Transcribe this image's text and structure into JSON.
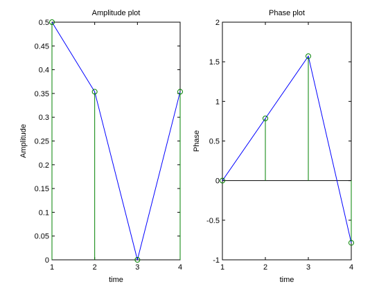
{
  "chart_data": [
    {
      "type": "line",
      "title": "Amplitude plot",
      "xlabel": "time",
      "ylabel": "Amplitude",
      "xlim": [
        1,
        4
      ],
      "ylim": [
        0,
        0.5
      ],
      "x_ticks": [
        1,
        2,
        3,
        4
      ],
      "y_ticks": [
        0,
        0.05,
        0.1,
        0.15,
        0.2,
        0.25,
        0.3,
        0.35,
        0.4,
        0.45,
        0.5
      ],
      "x_tick_labels": [
        "1",
        "2",
        "3",
        "4"
      ],
      "y_tick_labels": [
        "0",
        "0.05",
        "0.1",
        "0.15",
        "0.2",
        "0.25",
        "0.3",
        "0.35",
        "0.4",
        "0.45",
        "0.5"
      ],
      "x": [
        1,
        2,
        3,
        4
      ],
      "values": [
        0.5,
        0.3536,
        0,
        0.3536
      ],
      "stems": true,
      "markers": "circle",
      "line_color": "#0000ff",
      "stem_color": "#008000",
      "grid": false,
      "zero_line": false
    },
    {
      "type": "line",
      "title": "Phase plot",
      "xlabel": "time",
      "ylabel": "Phase",
      "xlim": [
        1,
        4
      ],
      "ylim": [
        -1,
        2
      ],
      "x_ticks": [
        1,
        2,
        3,
        4
      ],
      "y_ticks": [
        -1,
        -0.5,
        0,
        0.5,
        1,
        1.5,
        2
      ],
      "x_tick_labels": [
        "1",
        "2",
        "3",
        "4"
      ],
      "y_tick_labels": [
        "-1",
        "-0.5",
        "0",
        "0.5",
        "1",
        "1.5",
        "2"
      ],
      "x": [
        1,
        2,
        3,
        4
      ],
      "values": [
        0,
        0.7854,
        1.5708,
        -0.7854
      ],
      "stems": true,
      "markers": "circle",
      "line_color": "#0000ff",
      "stem_color": "#008000",
      "grid": false,
      "zero_line": true
    }
  ]
}
